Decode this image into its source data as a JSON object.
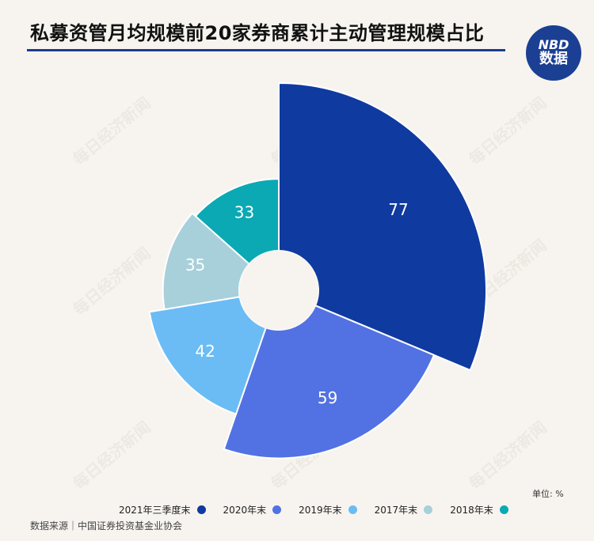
{
  "header": {
    "title": "私募资管月均规模前20家券商累计主动管理规模占比",
    "logo_line1": "NBD",
    "logo_line2": "数据"
  },
  "watermark": "每日经济新闻",
  "unit_label": "单位: %",
  "source": "数据来源｜中国证券投资基金业协会",
  "chart_data": {
    "type": "pie",
    "variant": "rose / nightingale ring",
    "series": [
      {
        "name": "2021年三季度末",
        "value": 77,
        "color": "#0f3aa0"
      },
      {
        "name": "2020年末",
        "value": 59,
        "color": "#5272e3"
      },
      {
        "name": "2019年末",
        "value": 42,
        "color": "#6bbcf5"
      },
      {
        "name": "2017年末",
        "value": 35,
        "color": "#a7d0da"
      },
      {
        "name": "2018年末",
        "value": 33,
        "color": "#0aa9b4"
      }
    ],
    "legend_position": "bottom"
  }
}
